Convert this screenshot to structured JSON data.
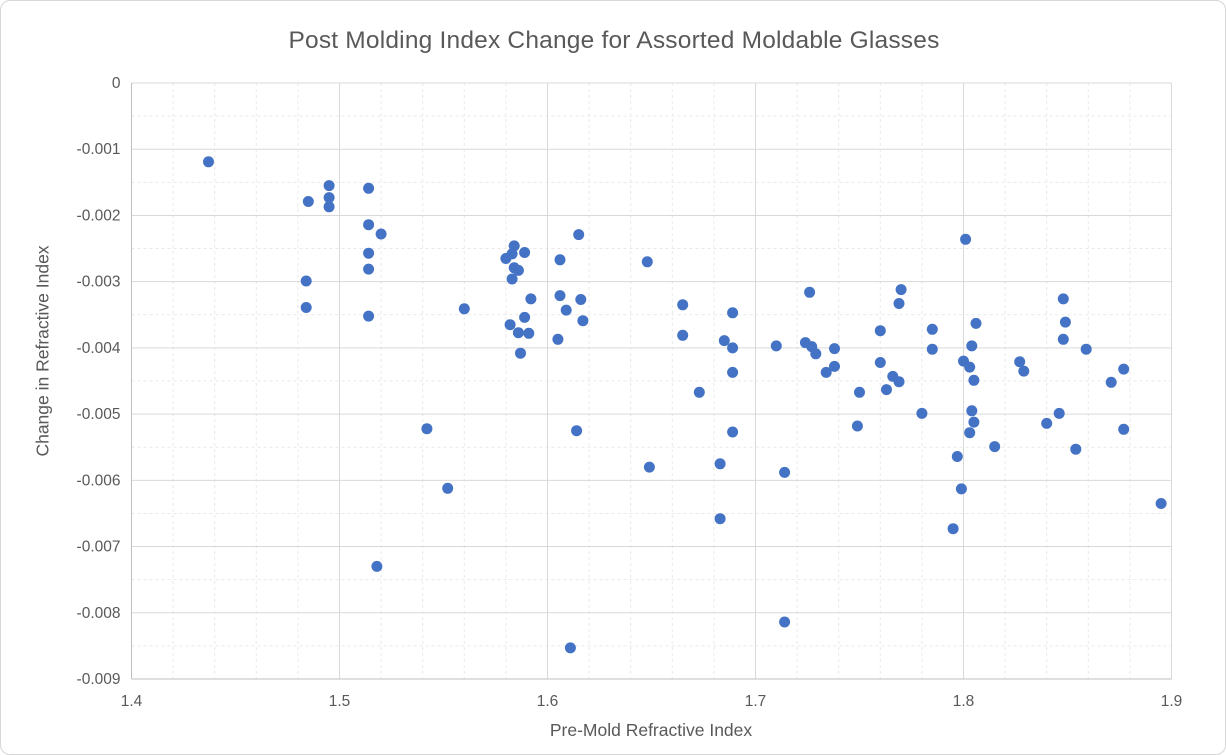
{
  "chart_data": {
    "type": "scatter",
    "title": "Post Molding Index Change for Assorted Moldable Glasses",
    "xlabel": "Pre-Mold Refractive Index",
    "ylabel": "Change in Refractive Index",
    "xlim": [
      1.4,
      1.9
    ],
    "ylim": [
      -0.009,
      0
    ],
    "grid": true,
    "legend": "none",
    "marker_color": "#4472C4",
    "x_axis": {
      "minor_step": 0.02,
      "ticks": [
        {
          "value": 1.4,
          "label": "1.4"
        },
        {
          "value": 1.5,
          "label": "1.5"
        },
        {
          "value": 1.6,
          "label": "1.6"
        },
        {
          "value": 1.7,
          "label": "1.7"
        },
        {
          "value": 1.8,
          "label": "1.8"
        },
        {
          "value": 1.9,
          "label": "1.9"
        }
      ]
    },
    "y_axis": {
      "minor_step": 0.0005,
      "ticks": [
        {
          "value": 0,
          "label": "0"
        },
        {
          "value": -0.001,
          "label": "-0.001"
        },
        {
          "value": -0.002,
          "label": "-0.002"
        },
        {
          "value": -0.003,
          "label": "-0.003"
        },
        {
          "value": -0.004,
          "label": "-0.004"
        },
        {
          "value": -0.005,
          "label": "-0.005"
        },
        {
          "value": -0.006,
          "label": "-0.006"
        },
        {
          "value": -0.007,
          "label": "-0.007"
        },
        {
          "value": -0.008,
          "label": "-0.008"
        },
        {
          "value": -0.009,
          "label": "-0.009"
        }
      ]
    },
    "points": [
      [
        1.437,
        -0.00119
      ],
      [
        1.485,
        -0.00179
      ],
      [
        1.495,
        -0.00155
      ],
      [
        1.495,
        -0.00173
      ],
      [
        1.495,
        -0.00187
      ],
      [
        1.484,
        -0.00299
      ],
      [
        1.484,
        -0.00339
      ],
      [
        1.514,
        -0.00159
      ],
      [
        1.514,
        -0.00214
      ],
      [
        1.52,
        -0.00228
      ],
      [
        1.514,
        -0.00257
      ],
      [
        1.514,
        -0.00281
      ],
      [
        1.514,
        -0.00352
      ],
      [
        1.518,
        -0.0073
      ],
      [
        1.542,
        -0.00522
      ],
      [
        1.552,
        -0.00612
      ],
      [
        1.56,
        -0.00341
      ],
      [
        1.58,
        -0.00265
      ],
      [
        1.583,
        -0.00258
      ],
      [
        1.584,
        -0.00246
      ],
      [
        1.589,
        -0.00256
      ],
      [
        1.584,
        -0.00279
      ],
      [
        1.586,
        -0.00283
      ],
      [
        1.583,
        -0.00296
      ],
      [
        1.592,
        -0.00326
      ],
      [
        1.589,
        -0.00354
      ],
      [
        1.582,
        -0.00365
      ],
      [
        1.586,
        -0.00377
      ],
      [
        1.591,
        -0.00378
      ],
      [
        1.587,
        -0.00408
      ],
      [
        1.606,
        -0.00267
      ],
      [
        1.615,
        -0.00229
      ],
      [
        1.606,
        -0.00321
      ],
      [
        1.616,
        -0.00327
      ],
      [
        1.609,
        -0.00343
      ],
      [
        1.617,
        -0.00359
      ],
      [
        1.605,
        -0.00387
      ],
      [
        1.614,
        -0.00525
      ],
      [
        1.611,
        -0.00853
      ],
      [
        1.648,
        -0.0027
      ],
      [
        1.649,
        -0.0058
      ],
      [
        1.665,
        -0.00335
      ],
      [
        1.665,
        -0.00381
      ],
      [
        1.673,
        -0.00467
      ],
      [
        1.683,
        -0.00575
      ],
      [
        1.683,
        -0.00658
      ],
      [
        1.685,
        -0.00389
      ],
      [
        1.689,
        -0.00347
      ],
      [
        1.689,
        -0.004
      ],
      [
        1.689,
        -0.00437
      ],
      [
        1.689,
        -0.00527
      ],
      [
        1.71,
        -0.00397
      ],
      [
        1.714,
        -0.00588
      ],
      [
        1.714,
        -0.00814
      ],
      [
        1.726,
        -0.00316
      ],
      [
        1.724,
        -0.00392
      ],
      [
        1.727,
        -0.00398
      ],
      [
        1.729,
        -0.00409
      ],
      [
        1.738,
        -0.00401
      ],
      [
        1.738,
        -0.00428
      ],
      [
        1.734,
        -0.00437
      ],
      [
        1.749,
        -0.00518
      ],
      [
        1.75,
        -0.00467
      ],
      [
        1.76,
        -0.00374
      ],
      [
        1.76,
        -0.00422
      ],
      [
        1.763,
        -0.00463
      ],
      [
        1.766,
        -0.00443
      ],
      [
        1.769,
        -0.00451
      ],
      [
        1.77,
        -0.00312
      ],
      [
        1.769,
        -0.00333
      ],
      [
        1.78,
        -0.00499
      ],
      [
        1.785,
        -0.00372
      ],
      [
        1.785,
        -0.00402
      ],
      [
        1.795,
        -0.00673
      ],
      [
        1.797,
        -0.00564
      ],
      [
        1.799,
        -0.00613
      ],
      [
        1.801,
        -0.00236
      ],
      [
        1.806,
        -0.00363
      ],
      [
        1.804,
        -0.00397
      ],
      [
        1.8,
        -0.0042
      ],
      [
        1.803,
        -0.00429
      ],
      [
        1.805,
        -0.00449
      ],
      [
        1.804,
        -0.00495
      ],
      [
        1.805,
        -0.00512
      ],
      [
        1.803,
        -0.00528
      ],
      [
        1.815,
        -0.00549
      ],
      [
        1.827,
        -0.00421
      ],
      [
        1.829,
        -0.00435
      ],
      [
        1.84,
        -0.00514
      ],
      [
        1.846,
        -0.00499
      ],
      [
        1.848,
        -0.00326
      ],
      [
        1.849,
        -0.00361
      ],
      [
        1.848,
        -0.00387
      ],
      [
        1.854,
        -0.00553
      ],
      [
        1.859,
        -0.00402
      ],
      [
        1.871,
        -0.00452
      ],
      [
        1.877,
        -0.00432
      ],
      [
        1.877,
        -0.00523
      ],
      [
        1.895,
        -0.00635
      ]
    ]
  },
  "colors": {
    "text": "#595959",
    "axis_line": "#BFBFBF",
    "grid_major": "#D9D9D9",
    "grid_minor": "#E9E9E9",
    "marker": "#4472C4",
    "background": "#FFFFFF",
    "frame_border": "#D7D7D7"
  }
}
